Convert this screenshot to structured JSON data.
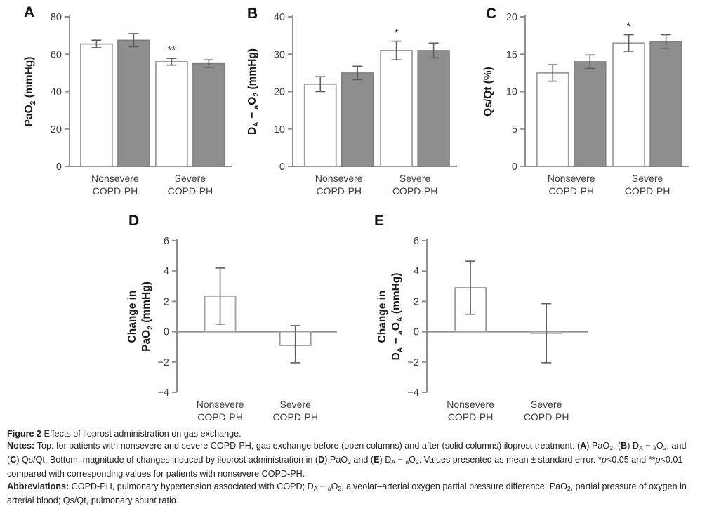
{
  "colors": {
    "axis": "#8f8f8f",
    "tick_text": "#3d3d3d",
    "category_text": "#3d3d3d",
    "ylabel_text": "#1c1c1c",
    "panel_letter": "#111111",
    "bar_open_fill": "#ffffff",
    "bar_open_stroke": "#9e9e9e",
    "bar_solid_fill": "#8e8e8e",
    "bar_solid_stroke": "#7d7d7d",
    "error_bar": "#5d5d5d",
    "sig_text": "#3a3a3a"
  },
  "chart_data": [
    {
      "id": "A",
      "type": "bar",
      "variant": "grouped",
      "panel_label": "A",
      "ylabel_lines": [
        [
          {
            "t": "PaO"
          },
          {
            "t": "2",
            "sub": true
          },
          {
            "t": " (mmHg)"
          }
        ]
      ],
      "ylim": [
        0,
        80
      ],
      "ytick_step": 20,
      "categories": [
        [
          "Nonsevere",
          "COPD-PH"
        ],
        [
          "Severe",
          "COPD-PH"
        ]
      ],
      "series": [
        {
          "name": "before iloprost (open columns)",
          "style": "open",
          "values": [
            65.5,
            56
          ],
          "errors_up": [
            2,
            1.8
          ],
          "errors_down": [
            2,
            1.8
          ]
        },
        {
          "name": "after iloprost (solid columns)",
          "style": "solid",
          "values": [
            67.5,
            55
          ],
          "errors_up": [
            3.5,
            2
          ],
          "errors_down": [
            3.5,
            2
          ]
        }
      ],
      "significance": [
        {
          "category": 1,
          "series": 0,
          "label": "**"
        }
      ]
    },
    {
      "id": "B",
      "type": "bar",
      "variant": "grouped",
      "panel_label": "B",
      "ylabel_lines": [
        [
          {
            "t": "D"
          },
          {
            "t": "A",
            "sub": true
          },
          {
            "t": " − "
          },
          {
            "t": "a",
            "sub": true
          },
          {
            "t": "O"
          },
          {
            "t": "2",
            "sub": true
          },
          {
            "t": " (mmHg)"
          }
        ]
      ],
      "ylim": [
        0,
        40
      ],
      "ytick_step": 10,
      "categories": [
        [
          "Nonsevere",
          "COPD-PH"
        ],
        [
          "Severe",
          "COPD-PH"
        ]
      ],
      "series": [
        {
          "name": "before iloprost (open columns)",
          "style": "open",
          "values": [
            22,
            31
          ],
          "errors_up": [
            2,
            2.5
          ],
          "errors_down": [
            2,
            2.5
          ]
        },
        {
          "name": "after iloprost (solid columns)",
          "style": "solid",
          "values": [
            25,
            31
          ],
          "errors_up": [
            1.8,
            2
          ],
          "errors_down": [
            1.8,
            2
          ]
        }
      ],
      "significance": [
        {
          "category": 1,
          "series": 0,
          "label": "*"
        }
      ]
    },
    {
      "id": "C",
      "type": "bar",
      "variant": "grouped",
      "panel_label": "C",
      "ylabel_lines": [
        [
          {
            "t": "Qs/Qt (%)"
          }
        ]
      ],
      "ylim": [
        0,
        20
      ],
      "ytick_step": 5,
      "categories": [
        [
          "Nonsevere",
          "COPD-PH"
        ],
        [
          "Severe",
          "COPD-PH"
        ]
      ],
      "series": [
        {
          "name": "before iloprost (open columns)",
          "style": "open",
          "values": [
            12.5,
            16.5
          ],
          "errors_up": [
            1.1,
            1.1
          ],
          "errors_down": [
            1.1,
            1.1
          ]
        },
        {
          "name": "after iloprost (solid columns)",
          "style": "solid",
          "values": [
            14,
            16.7
          ],
          "errors_up": [
            0.9,
            0.9
          ],
          "errors_down": [
            0.9,
            0.9
          ]
        }
      ],
      "significance": [
        {
          "category": 1,
          "series": 0,
          "label": "*"
        }
      ]
    },
    {
      "id": "D",
      "type": "bar",
      "variant": "change",
      "panel_label": "D",
      "ylabel_lines": [
        [
          {
            "t": "Change in"
          }
        ],
        [
          {
            "t": "PaO"
          },
          {
            "t": "2",
            "sub": true
          },
          {
            "t": " (mmHg)"
          }
        ]
      ],
      "ylim": [
        -4,
        6
      ],
      "ytick_step": 2,
      "categories": [
        [
          "Nonsevere",
          "COPD-PH"
        ],
        [
          "Severe",
          "COPD-PH"
        ]
      ],
      "series": [
        {
          "name": "change with iloprost",
          "style": "open",
          "values": [
            2.35,
            -0.9
          ],
          "errors_up": [
            1.85,
            1.3
          ],
          "errors_down": [
            1.85,
            1.15
          ]
        }
      ],
      "significance": []
    },
    {
      "id": "E",
      "type": "bar",
      "variant": "change",
      "panel_label": "E",
      "ylabel_lines": [
        [
          {
            "t": "Change in"
          }
        ],
        [
          {
            "t": "D"
          },
          {
            "t": "A",
            "sub": true
          },
          {
            "t": " − "
          },
          {
            "t": "a",
            "sub": true
          },
          {
            "t": "O"
          },
          {
            "t": "A",
            "sub": true
          },
          {
            "t": " (mmHg)"
          }
        ]
      ],
      "ylim": [
        -4,
        6
      ],
      "ytick_step": 2,
      "categories": [
        [
          "Nonsevere",
          "COPD-PH"
        ],
        [
          "Severe",
          "COPD-PH"
        ]
      ],
      "series": [
        {
          "name": "change with iloprost",
          "style": "open",
          "values": [
            2.9,
            -0.1
          ],
          "errors_up": [
            1.75,
            1.95
          ],
          "errors_down": [
            1.75,
            1.95
          ]
        }
      ],
      "significance": []
    }
  ],
  "caption": {
    "lines": [
      [
        {
          "t": "Figure 2 ",
          "b": true
        },
        {
          "t": "Effects of iloprost administration on gas exchange."
        }
      ],
      [
        {
          "t": "Notes: ",
          "b": true
        },
        {
          "t": "Top: for patients with nonsevere and severe COPD-PH, gas exchange before (open columns) and after (solid columns) iloprost treatment: ("
        },
        {
          "t": "A",
          "b": true
        },
        {
          "t": ") PaO"
        },
        {
          "t": "2",
          "sub": true
        },
        {
          "t": ", ("
        },
        {
          "t": "B",
          "b": true
        },
        {
          "t": ") D"
        },
        {
          "t": "A",
          "sub": true
        },
        {
          "t": " − "
        },
        {
          "t": "a",
          "sub": true
        },
        {
          "t": "O"
        },
        {
          "t": "2",
          "sub": true
        },
        {
          "t": ", and ("
        },
        {
          "t": "C",
          "b": true
        },
        {
          "t": ") Qs/Qt. Bottom: magnitude of changes induced by iloprost administration in ("
        },
        {
          "t": "D",
          "b": true
        },
        {
          "t": ") PaO"
        },
        {
          "t": "2",
          "sub": true
        },
        {
          "t": " and ("
        },
        {
          "t": "E",
          "b": true
        },
        {
          "t": ") D"
        },
        {
          "t": "A",
          "sub": true
        },
        {
          "t": " − "
        },
        {
          "t": "a",
          "sub": true
        },
        {
          "t": "O"
        },
        {
          "t": "2",
          "sub": true
        },
        {
          "t": ". Values presented as mean ± standard error. *"
        },
        {
          "t": "p",
          "i": true
        },
        {
          "t": "<0.05 and **"
        },
        {
          "t": "p",
          "i": true
        },
        {
          "t": "<0.01 compared with corresponding values for patients with nonsevere COPD-PH."
        }
      ],
      [
        {
          "t": "Abbreviations: ",
          "b": true
        },
        {
          "t": "COPD-PH, pulmonary hypertension associated with COPD; D"
        },
        {
          "t": "A",
          "sub": true
        },
        {
          "t": " − "
        },
        {
          "t": "a",
          "sub": true
        },
        {
          "t": "O"
        },
        {
          "t": "2",
          "sub": true
        },
        {
          "t": ", alveolar–arterial oxygen partial pressure difference; PaO"
        },
        {
          "t": "2",
          "sub": true
        },
        {
          "t": ", partial pressure of oxygen in arterial blood; Qs/Qt, pulmonary shunt ratio."
        }
      ]
    ]
  }
}
